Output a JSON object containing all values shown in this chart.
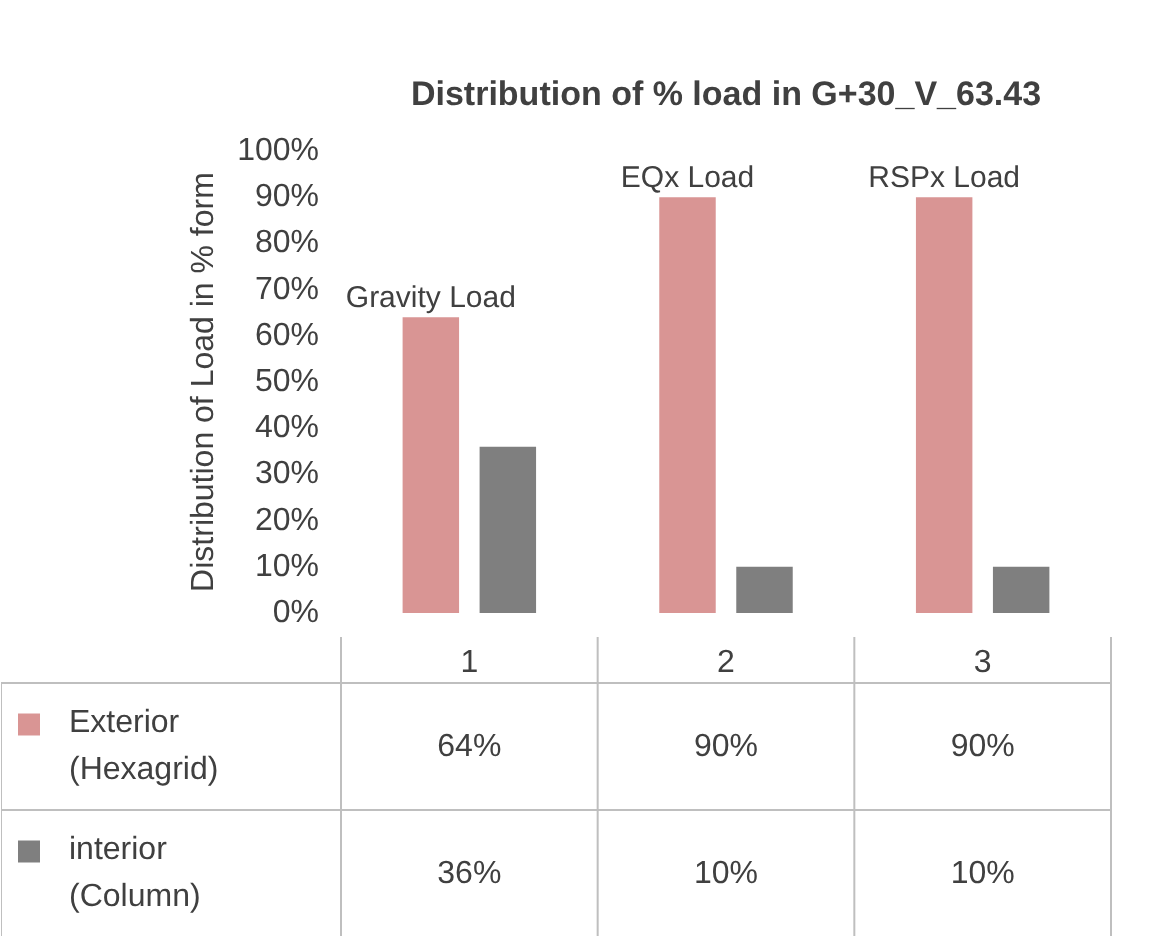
{
  "chart_data": {
    "type": "bar",
    "title": "Distribution of % load in G+30_V_63.43",
    "ylabel": "Distribution of Load in % form",
    "categories": [
      "1",
      "2",
      "3"
    ],
    "series": [
      {
        "name": "Exterior (Hexagrid)",
        "color": "#d99594",
        "values": [
          64,
          90,
          90
        ],
        "value_labels": [
          "64%",
          "90%",
          "90%"
        ]
      },
      {
        "name": "interior (Column)",
        "color": "#7f7f7f",
        "values": [
          36,
          10,
          10
        ],
        "value_labels": [
          "36%",
          "10%",
          "10%"
        ]
      }
    ],
    "ylim": [
      0,
      100
    ],
    "yticks": [
      {
        "value": 0,
        "label": "0%"
      },
      {
        "value": 10,
        "label": "10%"
      },
      {
        "value": 20,
        "label": "20%"
      },
      {
        "value": 30,
        "label": "30%"
      },
      {
        "value": 40,
        "label": "40%"
      },
      {
        "value": 50,
        "label": "50%"
      },
      {
        "value": 60,
        "label": "60%"
      },
      {
        "value": 70,
        "label": "70%"
      },
      {
        "value": 80,
        "label": "80%"
      },
      {
        "value": 90,
        "label": "90%"
      },
      {
        "value": 100,
        "label": "100%"
      }
    ],
    "annotations": [
      "Gravity Load",
      "EQx Load",
      "RSPx Load"
    ],
    "legend": "bottom"
  }
}
